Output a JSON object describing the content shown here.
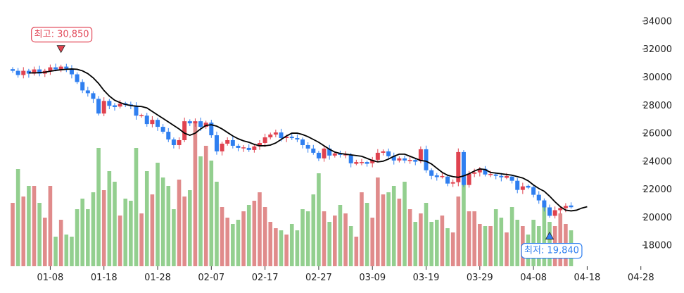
{
  "chart_data": {
    "type": "candlestick",
    "title": "",
    "colors": {
      "up": "#e0424f",
      "down": "#2f7ff0",
      "ma": "#000000",
      "volume_up": "#e08b8b",
      "volume_down": "#93cf8f",
      "high_annotation": "#e24a5a",
      "low_annotation": "#2f7ff0"
    },
    "x_ticks": [
      "01-08",
      "01-18",
      "01-28",
      "02-07",
      "02-17",
      "02-27",
      "03-09",
      "03-19",
      "03-29",
      "04-08",
      "04-18",
      "04-28"
    ],
    "y_ticks": [
      "18000",
      "20000",
      "22000",
      "24000",
      "26000",
      "28000",
      "30000",
      "32000",
      "34000"
    ],
    "ylim": [
      16500,
      34500
    ],
    "annotations": {
      "high_label": "최고: 30,850",
      "high_value": 30850,
      "low_label": "최저: 19,840",
      "low_value": 19840
    },
    "series": {
      "close": [
        30450,
        30150,
        30450,
        30250,
        30550,
        30250,
        30450,
        30700,
        30550,
        30750,
        30600,
        30200,
        29650,
        29050,
        28850,
        28450,
        27400,
        28300,
        27950,
        27900,
        28100,
        28050,
        27950,
        27250,
        27250,
        26650,
        26950,
        26450,
        26100,
        25550,
        25150,
        25500,
        26850,
        26700,
        26850,
        26450,
        26750,
        25850,
        24700,
        25250,
        25500,
        25100,
        24950,
        24950,
        24800,
        25050,
        25300,
        25700,
        25900,
        26050,
        25650,
        25750,
        25650,
        25550,
        25150,
        24900,
        24600,
        24200,
        24900,
        24400,
        24550,
        24450,
        24450,
        23850,
        23900,
        23900,
        23850,
        24100,
        24600,
        24700,
        24350,
        24050,
        24200,
        24050,
        24050,
        24000,
        24850,
        23350,
        22950,
        22900,
        22900,
        22400,
        22500,
        24650,
        22300,
        23100,
        23200,
        23450,
        23050,
        23050,
        22950,
        22850,
        22900,
        22600,
        21950,
        22200,
        22150,
        21600,
        21200,
        20700,
        20100,
        20500,
        20650,
        20800,
        20750
      ],
      "ma": [
        30300,
        30300,
        30320,
        30350,
        30420,
        30480,
        30530,
        30560,
        30580,
        30560,
        30450,
        30250,
        29950,
        29550,
        29050,
        28650,
        28350,
        28180,
        28050,
        27970,
        27930,
        27900,
        27800,
        27550,
        27300,
        27050,
        26800,
        26550,
        26300,
        26000,
        25850,
        26000,
        26300,
        26550,
        26600,
        26500,
        26300,
        26050,
        25800,
        25600,
        25450,
        25350,
        25200,
        25100,
        25100,
        25150,
        25300,
        25550,
        25800,
        26000,
        26000,
        25900,
        25750,
        25550,
        25350,
        25100,
        24850,
        24650,
        24550,
        24500,
        24450,
        24400,
        24350,
        24200,
        24050,
        23950,
        24000,
        24150,
        24350,
        24500,
        24500,
        24350,
        24200,
        24050,
        24000,
        23800,
        23500,
        23200,
        23000,
        22900,
        22850,
        22950,
        23100,
        23300,
        23450,
        23400,
        23200,
        23150,
        23100,
        23050,
        23000,
        22900,
        22800,
        22600,
        22300,
        22050,
        21850,
        21500,
        21100,
        20750,
        20500,
        20450,
        20500,
        20650,
        20750
      ],
      "volume": [
        0.3,
        0.46,
        0.33,
        0.38,
        0.38,
        0.3,
        0.23,
        0.38,
        0.14,
        0.22,
        0.15,
        0.14,
        0.27,
        0.32,
        0.27,
        0.35,
        0.56,
        0.36,
        0.45,
        0.4,
        0.24,
        0.32,
        0.31,
        0.56,
        0.25,
        0.45,
        0.34,
        0.49,
        0.42,
        0.38,
        0.27,
        0.41,
        0.33,
        0.36,
        0.68,
        0.52,
        0.57,
        0.5,
        0.4,
        0.28,
        0.23,
        0.2,
        0.22,
        0.26,
        0.29,
        0.31,
        0.35,
        0.28,
        0.21,
        0.18,
        0.17,
        0.15,
        0.2,
        0.17,
        0.27,
        0.26,
        0.34,
        0.44,
        0.26,
        0.21,
        0.24,
        0.29,
        0.25,
        0.19,
        0.14,
        0.35,
        0.3,
        0.23,
        0.42,
        0.34,
        0.35,
        0.38,
        0.32,
        0.4,
        0.27,
        0.21,
        0.25,
        0.3,
        0.21,
        0.22,
        0.24,
        0.18,
        0.16,
        0.33,
        0.39,
        0.26,
        0.26,
        0.2,
        0.19,
        0.19,
        0.27,
        0.23,
        0.16,
        0.28,
        0.22,
        0.19,
        0.15,
        0.22,
        0.19,
        0.3,
        0.21,
        0.19,
        0.25,
        0.2,
        0.17
      ]
    }
  }
}
